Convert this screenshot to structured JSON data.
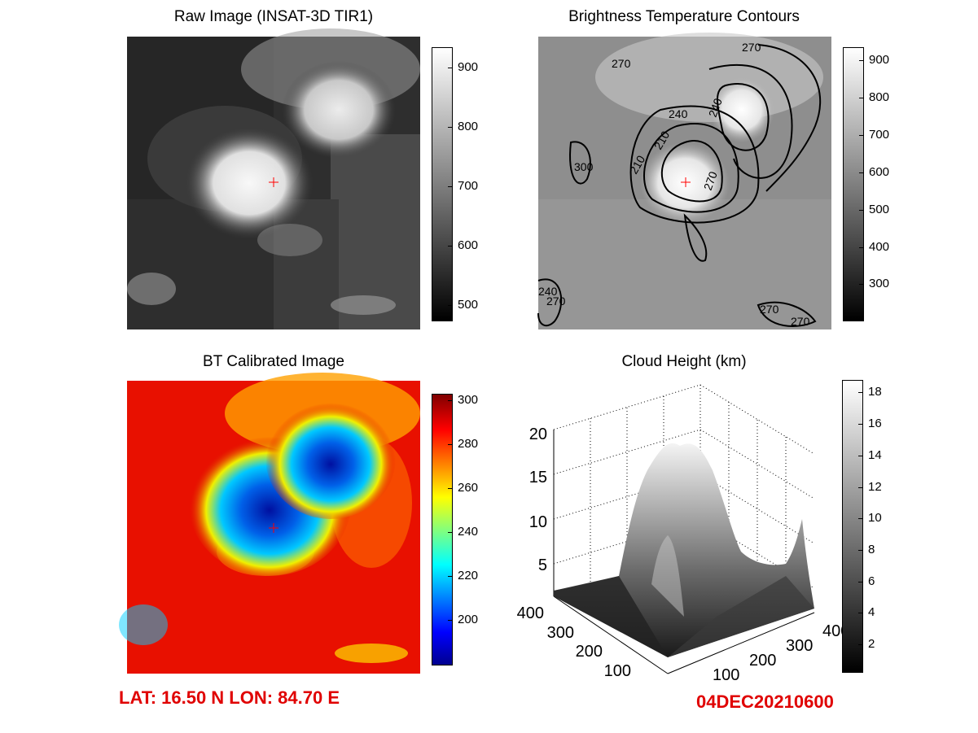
{
  "panels": {
    "raw": {
      "title": "Raw Image (INSAT-3D TIR1)"
    },
    "contour": {
      "title": "Brightness Temperature Contours",
      "contour_labels": [
        "270",
        "270",
        "240",
        "240",
        "210",
        "300",
        "210",
        "270",
        "270",
        "240",
        "270",
        "270"
      ]
    },
    "bt": {
      "title": "BT Calibrated Image"
    },
    "height": {
      "title": "Cloud Height (km)"
    }
  },
  "footer": {
    "location": "LAT: 16.50 N  LON: 84.70 E",
    "datetime": "04DEC20210600"
  },
  "colors": {
    "footer": "#e00000",
    "marker": "#ff0000"
  },
  "chart_data": [
    {
      "type": "heatmap",
      "title": "Raw Image (INSAT-3D TIR1)",
      "colormap": "gray",
      "colorbar_ticks": [
        500,
        600,
        700,
        800,
        900
      ],
      "clim": [
        475,
        935
      ],
      "marker": "center cross"
    },
    {
      "type": "heatmap",
      "title": "Brightness Temperature Contours",
      "colormap": "gray",
      "colorbar_ticks": [
        300,
        400,
        500,
        600,
        700,
        800,
        900
      ],
      "clim": [
        205,
        935
      ],
      "contour_levels": [
        210,
        240,
        270,
        300
      ]
    },
    {
      "type": "heatmap",
      "title": "BT Calibrated Image",
      "colormap": "jet",
      "colorbar_ticks": [
        200,
        220,
        240,
        260,
        280,
        300
      ],
      "clim": [
        180,
        303
      ],
      "marker": "center cross"
    },
    {
      "type": "surface",
      "title": "Cloud Height (km)",
      "colormap": "gray",
      "z_ticks": [
        5,
        10,
        15,
        20
      ],
      "x_ticks": [
        100,
        200,
        300,
        400
      ],
      "y_ticks": [
        100,
        200,
        300,
        400
      ],
      "colorbar_ticks": [
        2,
        4,
        6,
        8,
        10,
        12,
        14,
        16,
        18
      ],
      "clim": [
        0.3,
        18.8
      ]
    }
  ]
}
